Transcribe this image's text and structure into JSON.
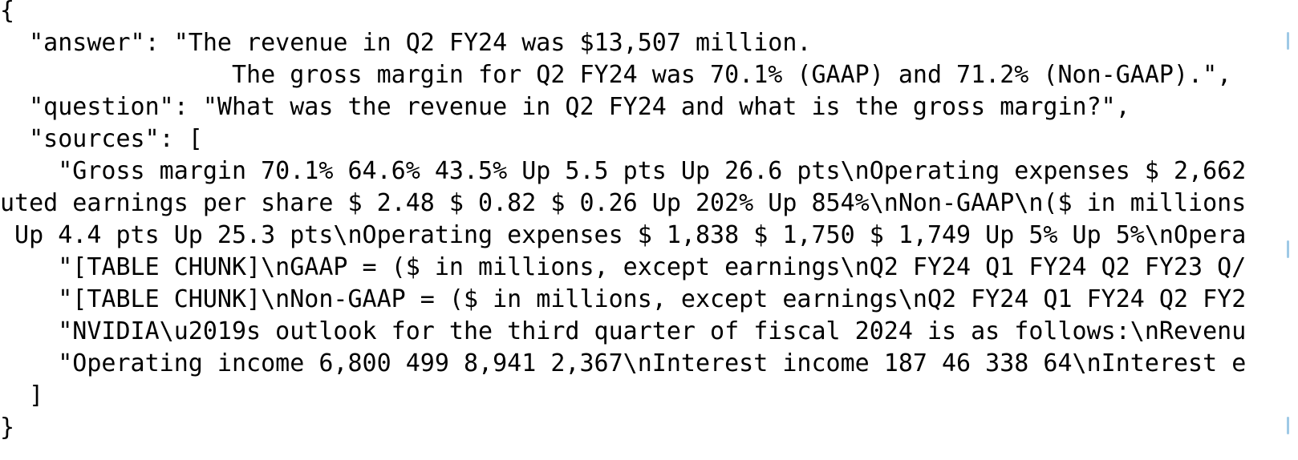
{
  "json_view": {
    "lines": [
      "{",
      "  \"answer\": \"The revenue in Q2 FY24 was $13,507 million.",
      "                The gross margin for Q2 FY24 was 70.1% (GAAP) and 71.2% (Non-GAAP).\",",
      "  \"question\": \"What was the revenue in Q2 FY24 and what is the gross margin?\",",
      "  \"sources\": [",
      "    \"Gross margin 70.1% 64.6% 43.5% Up 5.5 pts Up 26.6 pts\\nOperating expenses $ 2,662",
      "uted earnings per share $ 2.48 $ 0.82 $ 0.26 Up 202% Up 854%\\nNon-GAAP\\n($ in millions",
      " Up 4.4 pts Up 25.3 pts\\nOperating expenses $ 1,838 $ 1,750 $ 1,749 Up 5% Up 5%\\nOpera",
      "    \"[TABLE CHUNK]\\nGAAP = ($ in millions, except earnings\\nQ2 FY24 Q1 FY24 Q2 FY23 Q/",
      "    \"[TABLE CHUNK]\\nNon-GAAP = ($ in millions, except earnings\\nQ2 FY24 Q1 FY24 Q2 FY2",
      "    \"NVIDIA\\u2019s outlook for the third quarter of fiscal 2024 is as follows:\\nRevenu",
      "    \"Operating income 6,800 499 8,941 2,367\\nInterest income 187 46 338 64\\nInterest e",
      "  ]",
      "}"
    ]
  },
  "colors": {
    "background": "#ffffff",
    "text": "#000000",
    "edge_marks": "#9ec9e6"
  }
}
